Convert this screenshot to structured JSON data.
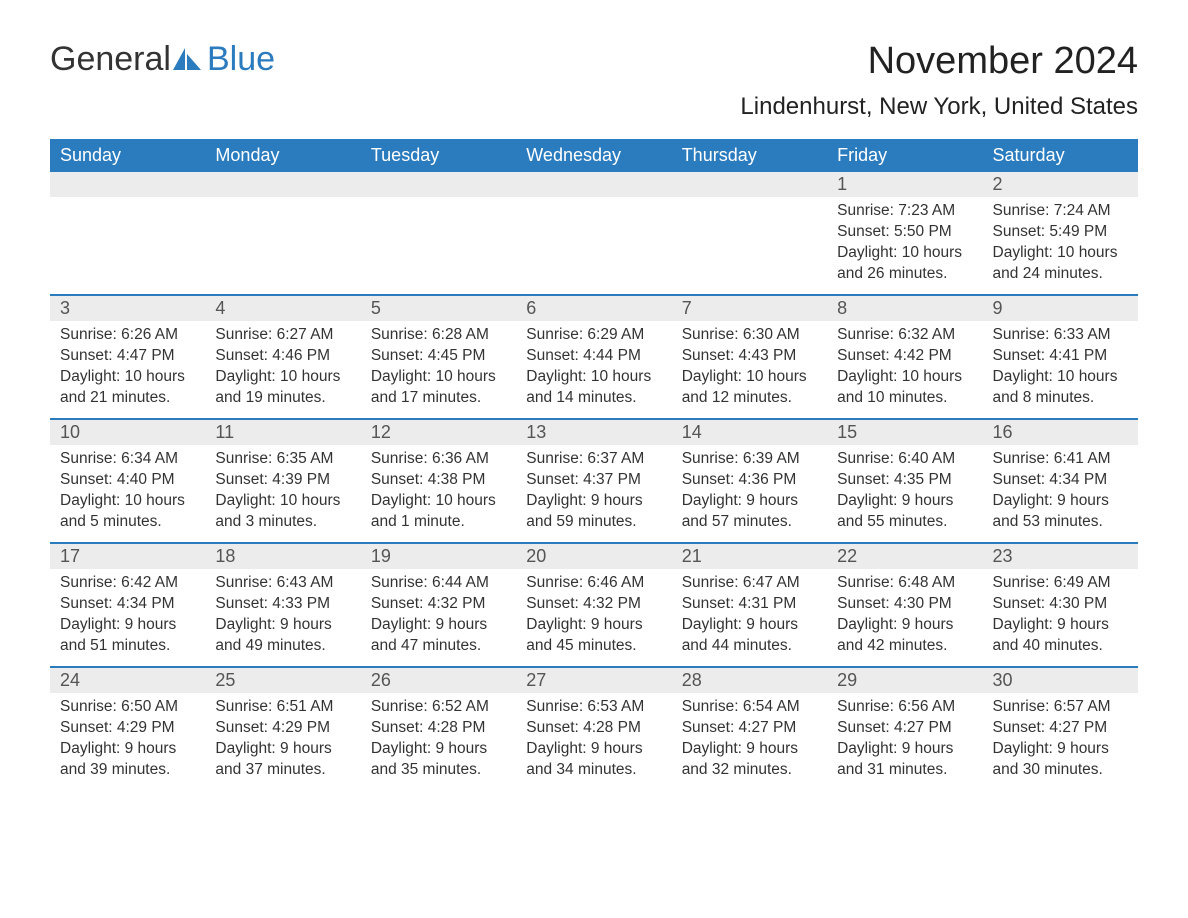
{
  "logo": {
    "text1": "General",
    "text2": "Blue",
    "icon_color": "#2b7bbf"
  },
  "title": "November 2024",
  "location": "Lindenhurst, New York, United States",
  "colors": {
    "header_bg": "#2b7bbf",
    "header_text": "#ffffff",
    "daynum_bg": "#ececec",
    "border": "#2b7bbf",
    "body_text": "#333333"
  },
  "typography": {
    "title_fontsize": 38,
    "location_fontsize": 24,
    "dow_fontsize": 18,
    "daynum_fontsize": 18,
    "body_fontsize": 15.5
  },
  "days_of_week": [
    "Sunday",
    "Monday",
    "Tuesday",
    "Wednesday",
    "Thursday",
    "Friday",
    "Saturday"
  ],
  "weeks": [
    [
      {
        "n": "",
        "sunrise": "",
        "sunset": "",
        "daylight": ""
      },
      {
        "n": "",
        "sunrise": "",
        "sunset": "",
        "daylight": ""
      },
      {
        "n": "",
        "sunrise": "",
        "sunset": "",
        "daylight": ""
      },
      {
        "n": "",
        "sunrise": "",
        "sunset": "",
        "daylight": ""
      },
      {
        "n": "",
        "sunrise": "",
        "sunset": "",
        "daylight": ""
      },
      {
        "n": "1",
        "sunrise": "Sunrise: 7:23 AM",
        "sunset": "Sunset: 5:50 PM",
        "daylight": "Daylight: 10 hours and 26 minutes."
      },
      {
        "n": "2",
        "sunrise": "Sunrise: 7:24 AM",
        "sunset": "Sunset: 5:49 PM",
        "daylight": "Daylight: 10 hours and 24 minutes."
      }
    ],
    [
      {
        "n": "3",
        "sunrise": "Sunrise: 6:26 AM",
        "sunset": "Sunset: 4:47 PM",
        "daylight": "Daylight: 10 hours and 21 minutes."
      },
      {
        "n": "4",
        "sunrise": "Sunrise: 6:27 AM",
        "sunset": "Sunset: 4:46 PM",
        "daylight": "Daylight: 10 hours and 19 minutes."
      },
      {
        "n": "5",
        "sunrise": "Sunrise: 6:28 AM",
        "sunset": "Sunset: 4:45 PM",
        "daylight": "Daylight: 10 hours and 17 minutes."
      },
      {
        "n": "6",
        "sunrise": "Sunrise: 6:29 AM",
        "sunset": "Sunset: 4:44 PM",
        "daylight": "Daylight: 10 hours and 14 minutes."
      },
      {
        "n": "7",
        "sunrise": "Sunrise: 6:30 AM",
        "sunset": "Sunset: 4:43 PM",
        "daylight": "Daylight: 10 hours and 12 minutes."
      },
      {
        "n": "8",
        "sunrise": "Sunrise: 6:32 AM",
        "sunset": "Sunset: 4:42 PM",
        "daylight": "Daylight: 10 hours and 10 minutes."
      },
      {
        "n": "9",
        "sunrise": "Sunrise: 6:33 AM",
        "sunset": "Sunset: 4:41 PM",
        "daylight": "Daylight: 10 hours and 8 minutes."
      }
    ],
    [
      {
        "n": "10",
        "sunrise": "Sunrise: 6:34 AM",
        "sunset": "Sunset: 4:40 PM",
        "daylight": "Daylight: 10 hours and 5 minutes."
      },
      {
        "n": "11",
        "sunrise": "Sunrise: 6:35 AM",
        "sunset": "Sunset: 4:39 PM",
        "daylight": "Daylight: 10 hours and 3 minutes."
      },
      {
        "n": "12",
        "sunrise": "Sunrise: 6:36 AM",
        "sunset": "Sunset: 4:38 PM",
        "daylight": "Daylight: 10 hours and 1 minute."
      },
      {
        "n": "13",
        "sunrise": "Sunrise: 6:37 AM",
        "sunset": "Sunset: 4:37 PM",
        "daylight": "Daylight: 9 hours and 59 minutes."
      },
      {
        "n": "14",
        "sunrise": "Sunrise: 6:39 AM",
        "sunset": "Sunset: 4:36 PM",
        "daylight": "Daylight: 9 hours and 57 minutes."
      },
      {
        "n": "15",
        "sunrise": "Sunrise: 6:40 AM",
        "sunset": "Sunset: 4:35 PM",
        "daylight": "Daylight: 9 hours and 55 minutes."
      },
      {
        "n": "16",
        "sunrise": "Sunrise: 6:41 AM",
        "sunset": "Sunset: 4:34 PM",
        "daylight": "Daylight: 9 hours and 53 minutes."
      }
    ],
    [
      {
        "n": "17",
        "sunrise": "Sunrise: 6:42 AM",
        "sunset": "Sunset: 4:34 PM",
        "daylight": "Daylight: 9 hours and 51 minutes."
      },
      {
        "n": "18",
        "sunrise": "Sunrise: 6:43 AM",
        "sunset": "Sunset: 4:33 PM",
        "daylight": "Daylight: 9 hours and 49 minutes."
      },
      {
        "n": "19",
        "sunrise": "Sunrise: 6:44 AM",
        "sunset": "Sunset: 4:32 PM",
        "daylight": "Daylight: 9 hours and 47 minutes."
      },
      {
        "n": "20",
        "sunrise": "Sunrise: 6:46 AM",
        "sunset": "Sunset: 4:32 PM",
        "daylight": "Daylight: 9 hours and 45 minutes."
      },
      {
        "n": "21",
        "sunrise": "Sunrise: 6:47 AM",
        "sunset": "Sunset: 4:31 PM",
        "daylight": "Daylight: 9 hours and 44 minutes."
      },
      {
        "n": "22",
        "sunrise": "Sunrise: 6:48 AM",
        "sunset": "Sunset: 4:30 PM",
        "daylight": "Daylight: 9 hours and 42 minutes."
      },
      {
        "n": "23",
        "sunrise": "Sunrise: 6:49 AM",
        "sunset": "Sunset: 4:30 PM",
        "daylight": "Daylight: 9 hours and 40 minutes."
      }
    ],
    [
      {
        "n": "24",
        "sunrise": "Sunrise: 6:50 AM",
        "sunset": "Sunset: 4:29 PM",
        "daylight": "Daylight: 9 hours and 39 minutes."
      },
      {
        "n": "25",
        "sunrise": "Sunrise: 6:51 AM",
        "sunset": "Sunset: 4:29 PM",
        "daylight": "Daylight: 9 hours and 37 minutes."
      },
      {
        "n": "26",
        "sunrise": "Sunrise: 6:52 AM",
        "sunset": "Sunset: 4:28 PM",
        "daylight": "Daylight: 9 hours and 35 minutes."
      },
      {
        "n": "27",
        "sunrise": "Sunrise: 6:53 AM",
        "sunset": "Sunset: 4:28 PM",
        "daylight": "Daylight: 9 hours and 34 minutes."
      },
      {
        "n": "28",
        "sunrise": "Sunrise: 6:54 AM",
        "sunset": "Sunset: 4:27 PM",
        "daylight": "Daylight: 9 hours and 32 minutes."
      },
      {
        "n": "29",
        "sunrise": "Sunrise: 6:56 AM",
        "sunset": "Sunset: 4:27 PM",
        "daylight": "Daylight: 9 hours and 31 minutes."
      },
      {
        "n": "30",
        "sunrise": "Sunrise: 6:57 AM",
        "sunset": "Sunset: 4:27 PM",
        "daylight": "Daylight: 9 hours and 30 minutes."
      }
    ]
  ]
}
